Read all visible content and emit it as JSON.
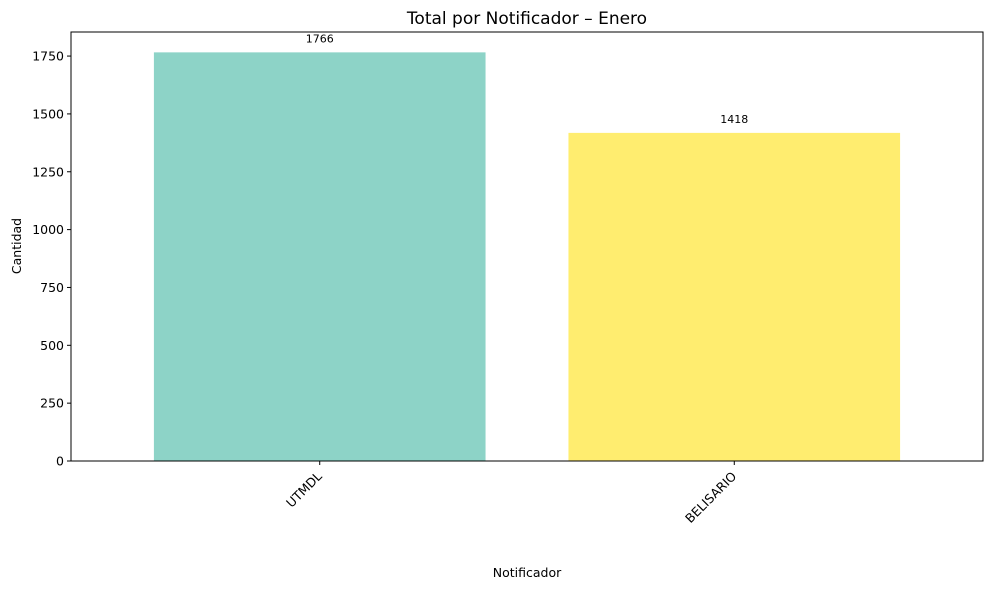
{
  "chart_data": {
    "type": "bar",
    "title": "Total por Notificador – Enero",
    "xlabel": "Notificador",
    "ylabel": "Cantidad",
    "categories": [
      "UTMDL",
      "BELISARIO"
    ],
    "values": [
      1766,
      1418
    ],
    "data_labels": [
      "1766",
      "1418"
    ],
    "bar_colors": [
      "#8dd3c7",
      "#ffed6f"
    ],
    "ylim": [
      0,
      1854
    ],
    "yticks": [
      0,
      250,
      500,
      750,
      1000,
      1250,
      1500,
      1750
    ],
    "ytick_labels": [
      "0",
      "250",
      "500",
      "750",
      "1000",
      "1250",
      "1500",
      "1750"
    ],
    "grid": false,
    "legend": "none"
  }
}
